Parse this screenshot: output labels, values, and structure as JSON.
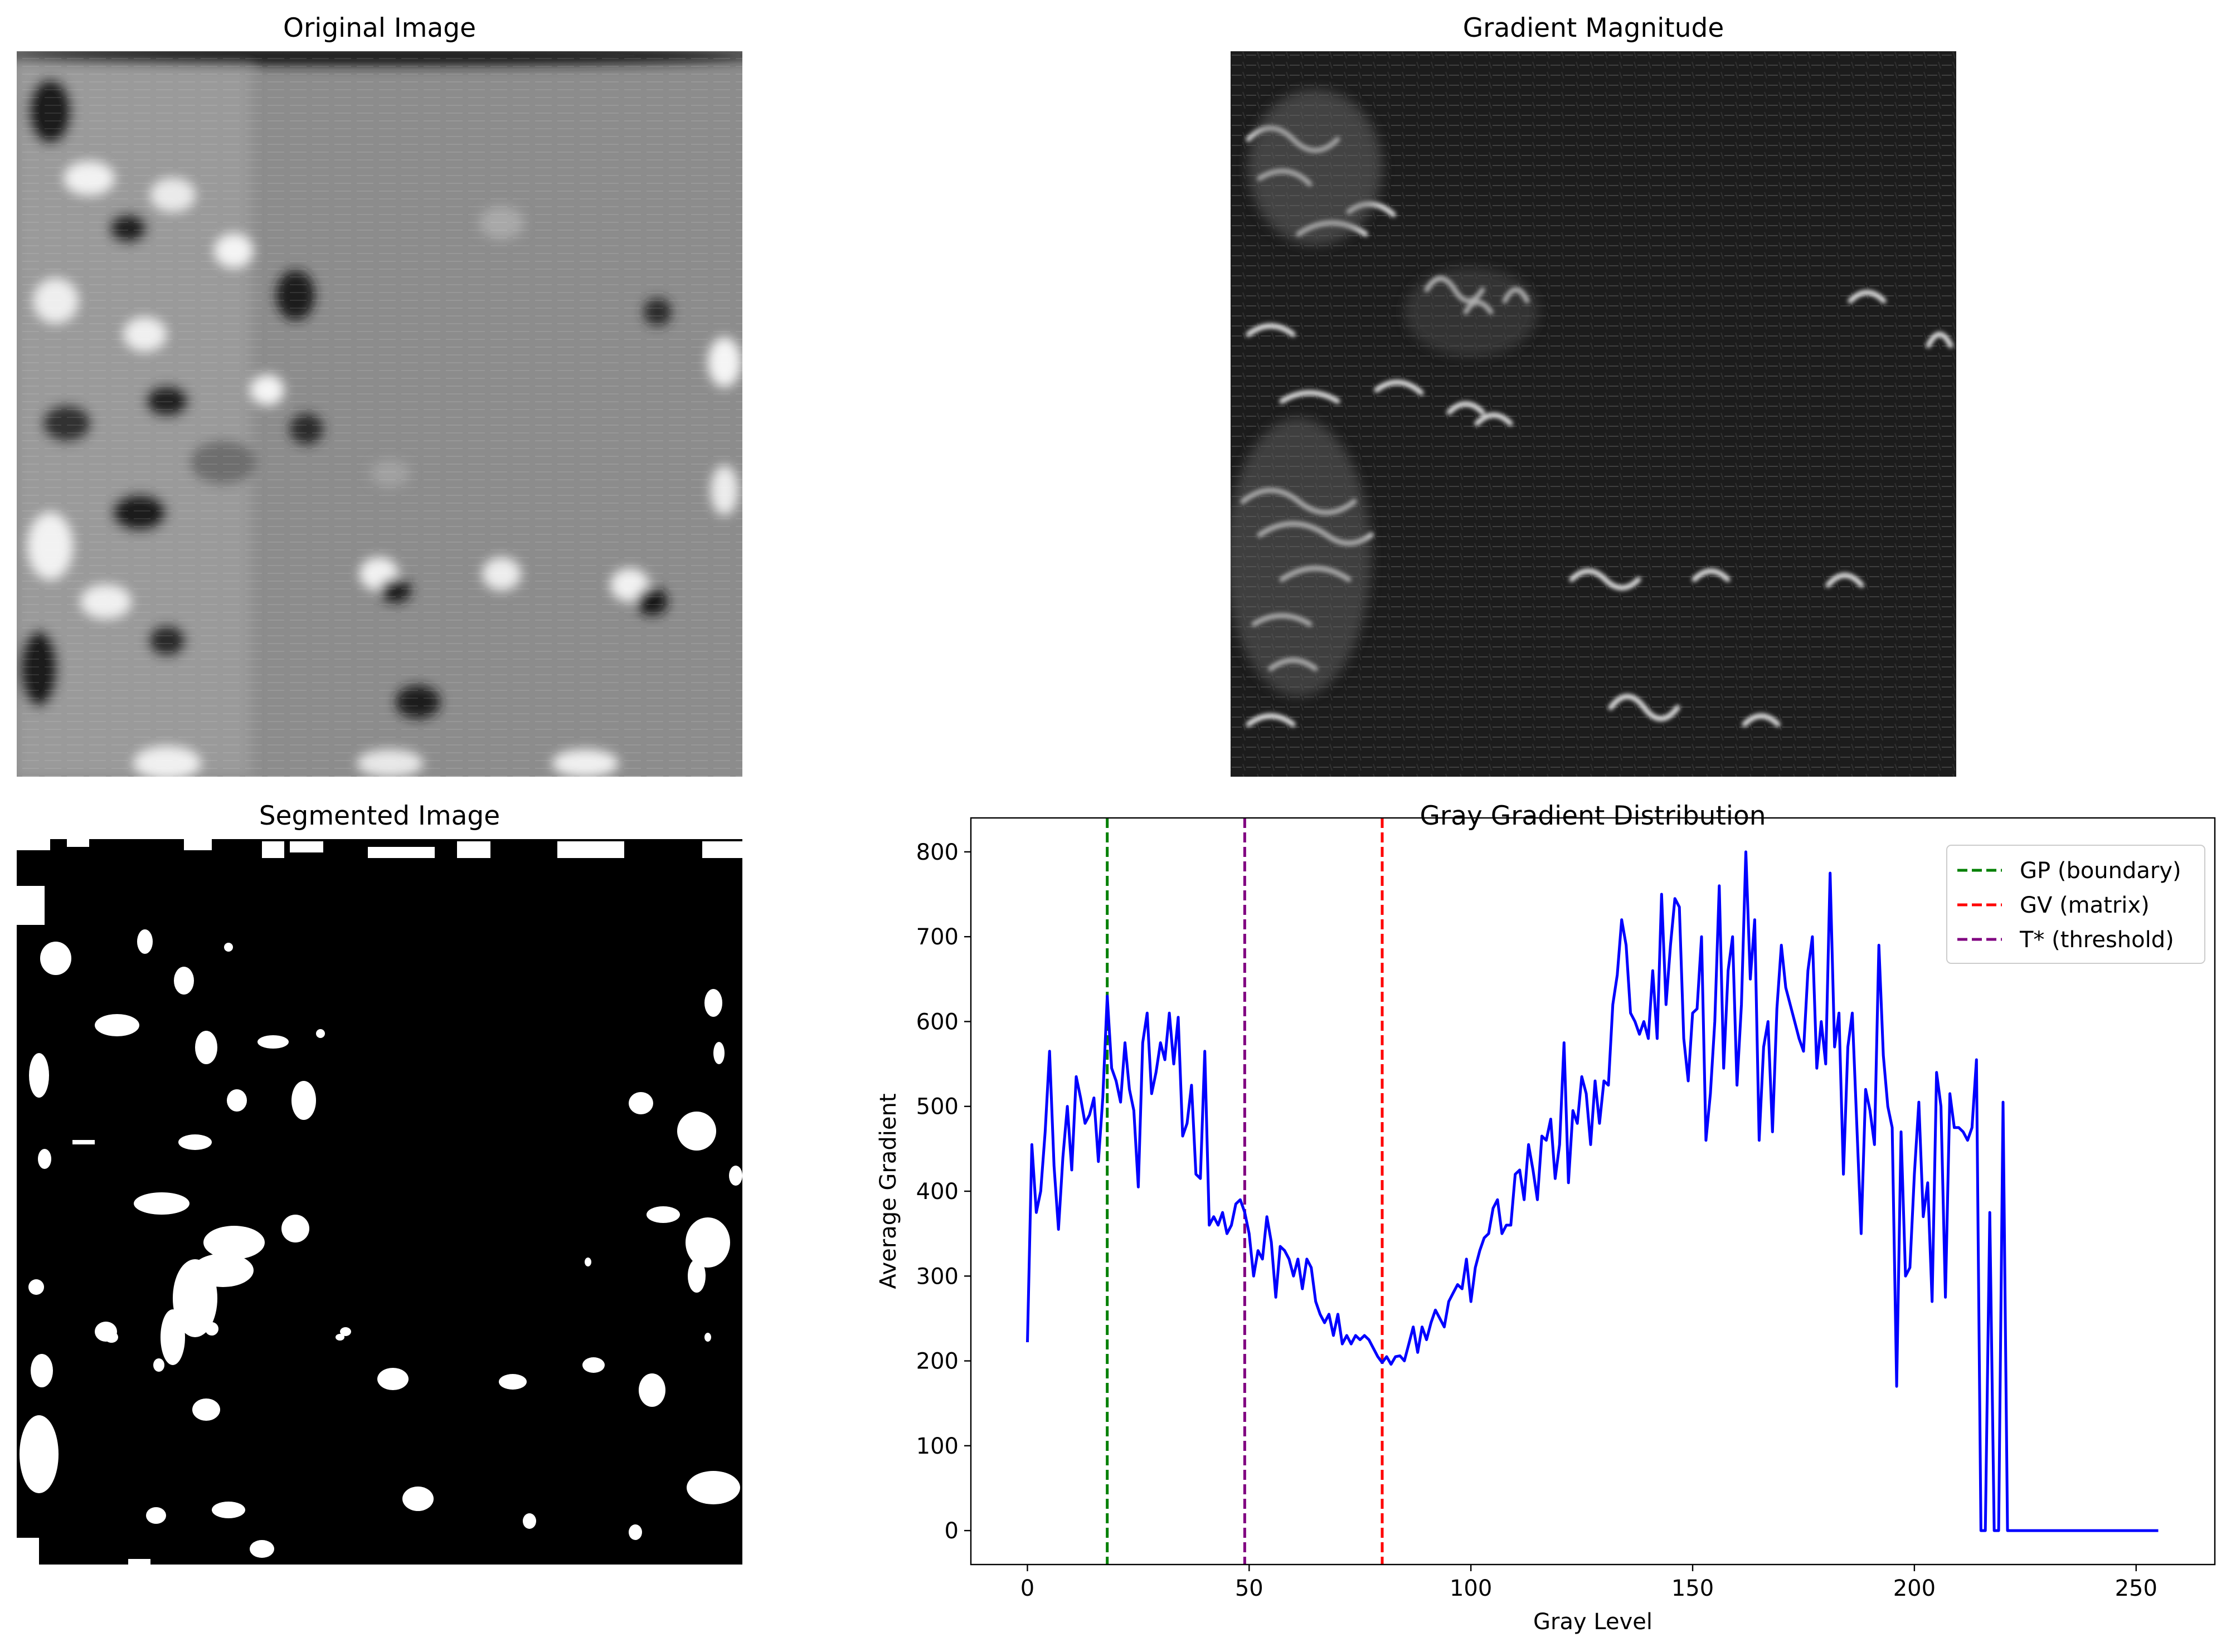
{
  "panels": {
    "original": {
      "title": "Original Image"
    },
    "gradient": {
      "title": "Gradient Magnitude"
    },
    "segmented": {
      "title": "Segmented Image"
    }
  },
  "chart_data": {
    "type": "line",
    "title": "Gray Gradient Distribution",
    "xlabel": "Gray Level",
    "ylabel": "Average Gradient",
    "xlim": [
      -12.75,
      267.75
    ],
    "ylim": [
      -40,
      840
    ],
    "xticks": [
      0,
      50,
      100,
      150,
      200,
      250
    ],
    "yticks": [
      0,
      100,
      200,
      300,
      400,
      500,
      600,
      700,
      800
    ],
    "grid": false,
    "legend_position": "top-right",
    "series": [
      {
        "color": "#0000ff",
        "x": [
          0,
          1,
          2,
          3,
          4,
          5,
          6,
          7,
          8,
          9,
          10,
          11,
          12,
          13,
          14,
          15,
          16,
          17,
          18,
          19,
          20,
          21,
          22,
          23,
          24,
          25,
          26,
          27,
          28,
          29,
          30,
          31,
          32,
          33,
          34,
          35,
          36,
          37,
          38,
          39,
          40,
          41,
          42,
          43,
          44,
          45,
          46,
          47,
          48,
          49,
          50,
          51,
          52,
          53,
          54,
          55,
          56,
          57,
          58,
          59,
          60,
          61,
          62,
          63,
          64,
          65,
          66,
          67,
          68,
          69,
          70,
          71,
          72,
          73,
          74,
          75,
          76,
          77,
          78,
          79,
          80,
          81,
          82,
          83,
          84,
          85,
          86,
          87,
          88,
          89,
          90,
          91,
          92,
          93,
          94,
          95,
          96,
          97,
          98,
          99,
          100,
          101,
          102,
          103,
          104,
          105,
          106,
          107,
          108,
          109,
          110,
          111,
          112,
          113,
          114,
          115,
          116,
          117,
          118,
          119,
          120,
          121,
          122,
          123,
          124,
          125,
          126,
          127,
          128,
          129,
          130,
          131,
          132,
          133,
          134,
          135,
          136,
          137,
          138,
          139,
          140,
          141,
          142,
          143,
          144,
          145,
          146,
          147,
          148,
          149,
          150,
          151,
          152,
          153,
          154,
          155,
          156,
          157,
          158,
          159,
          160,
          161,
          162,
          163,
          164,
          165,
          166,
          167,
          168,
          169,
          170,
          171,
          172,
          173,
          174,
          175,
          176,
          177,
          178,
          179,
          180,
          181,
          182,
          183,
          184,
          185,
          186,
          187,
          188,
          189,
          190,
          191,
          192,
          193,
          194,
          195,
          196,
          197,
          198,
          199,
          200,
          201,
          202,
          203,
          204,
          205,
          206,
          207,
          208,
          209,
          210,
          211,
          212,
          213,
          214,
          215,
          216,
          217,
          218,
          219,
          220,
          221,
          222,
          225,
          230,
          235,
          240,
          245,
          250,
          255
        ],
        "y": [
          222,
          455,
          375,
          400,
          470,
          565,
          430,
          355,
          440,
          500,
          425,
          535,
          510,
          480,
          490,
          510,
          435,
          510,
          630,
          545,
          530,
          505,
          575,
          520,
          495,
          405,
          575,
          610,
          515,
          540,
          575,
          555,
          610,
          550,
          605,
          465,
          480,
          525,
          420,
          415,
          565,
          360,
          370,
          360,
          375,
          350,
          360,
          385,
          390,
          375,
          350,
          300,
          330,
          320,
          370,
          340,
          275,
          335,
          330,
          320,
          300,
          320,
          285,
          320,
          310,
          270,
          255,
          245,
          255,
          230,
          255,
          220,
          230,
          220,
          230,
          225,
          230,
          225,
          215,
          205,
          198,
          205,
          196,
          205,
          206,
          200,
          220,
          240,
          210,
          240,
          225,
          245,
          260,
          250,
          240,
          270,
          280,
          290,
          285,
          320,
          270,
          310,
          330,
          345,
          350,
          380,
          390,
          350,
          360,
          360,
          420,
          425,
          390,
          455,
          425,
          390,
          465,
          460,
          485,
          415,
          455,
          575,
          410,
          495,
          480,
          535,
          515,
          455,
          530,
          480,
          530,
          525,
          620,
          655,
          720,
          690,
          610,
          600,
          585,
          600,
          580,
          660,
          580,
          750,
          620,
          690,
          745,
          735,
          580,
          530,
          610,
          615,
          700,
          460,
          515,
          600,
          760,
          545,
          660,
          700,
          525,
          620,
          800,
          650,
          720,
          460,
          570,
          600,
          470,
          615,
          690,
          640,
          620,
          600,
          580,
          565,
          660,
          700,
          545,
          600,
          550,
          775,
          570,
          610,
          420,
          570,
          610,
          480,
          350,
          520,
          495,
          455,
          690,
          560,
          500,
          475,
          170,
          470,
          300,
          310,
          420,
          505,
          370,
          410,
          270,
          540,
          500,
          275,
          515,
          475,
          475,
          470,
          460,
          475,
          555,
          0,
          0,
          375,
          0,
          0,
          505,
          0,
          0,
          0,
          0,
          0,
          0,
          0,
          0,
          0
        ]
      }
    ],
    "vlines": [
      {
        "label": "GP (boundary)",
        "x": 18,
        "color": "#008000"
      },
      {
        "label": "GV (matrix)",
        "x": 80,
        "color": "#ff0000"
      },
      {
        "label": "T* (threshold)",
        "x": 49,
        "color": "#800080"
      }
    ]
  }
}
